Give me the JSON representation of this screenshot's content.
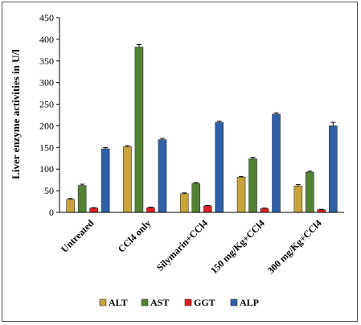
{
  "chart_data": {
    "type": "bar",
    "title": "",
    "xlabel": "",
    "ylabel": "Liver enzyme activities in U/l",
    "ylim": [
      0,
      450
    ],
    "yticks": [
      0,
      50,
      100,
      150,
      200,
      250,
      300,
      350,
      400,
      450
    ],
    "grid": false,
    "legend_position": "bottom",
    "categories": [
      "Untreated",
      "CCl4 only",
      "Silymarin+CCl4",
      "150 mg/Kg+CCl4",
      "300 mg/Kg+CCl4"
    ],
    "series": [
      {
        "name": "ALT",
        "color": "#C9A33B",
        "values": [
          30,
          152,
          43,
          81,
          61
        ],
        "errors": [
          2,
          2,
          2,
          2,
          3
        ]
      },
      {
        "name": "AST",
        "color": "#548235",
        "values": [
          62,
          382,
          67,
          124,
          93
        ],
        "errors": [
          3,
          6,
          2,
          3,
          2
        ]
      },
      {
        "name": "GGT",
        "color": "#E02020",
        "values": [
          10,
          11,
          15,
          9,
          6
        ],
        "errors": [
          1,
          1,
          1,
          1,
          1
        ]
      },
      {
        "name": "ALP",
        "color": "#2E5FA8",
        "values": [
          147,
          168,
          208,
          227,
          200
        ],
        "errors": [
          3,
          3,
          3,
          3,
          8
        ]
      }
    ]
  }
}
